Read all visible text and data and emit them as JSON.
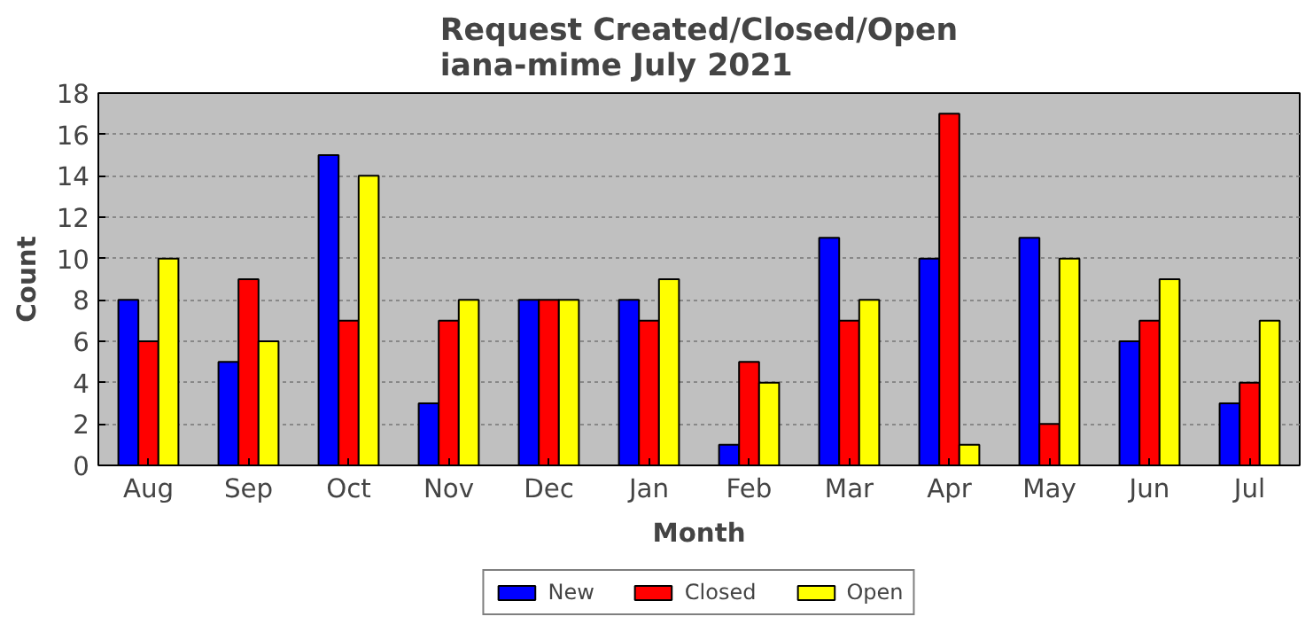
{
  "chart_data": {
    "type": "bar",
    "title": "Request Created/Closed/Open\niana-mime July 2021",
    "xlabel": "Month",
    "ylabel": "Count",
    "categories": [
      "Aug",
      "Sep",
      "Oct",
      "Nov",
      "Dec",
      "Jan",
      "Feb",
      "Mar",
      "Apr",
      "May",
      "Jun",
      "Jul"
    ],
    "series": [
      {
        "name": "New",
        "color": "#0000ff",
        "values": [
          8,
          5,
          15,
          3,
          8,
          8,
          1,
          11,
          10,
          11,
          6,
          3
        ]
      },
      {
        "name": "Closed",
        "color": "#ff0000",
        "values": [
          6,
          9,
          7,
          7,
          8,
          7,
          5,
          7,
          17,
          2,
          7,
          4
        ]
      },
      {
        "name": "Open",
        "color": "#ffff00",
        "values": [
          10,
          6,
          14,
          8,
          8,
          9,
          4,
          8,
          1,
          10,
          9,
          7
        ]
      }
    ],
    "ylim": [
      0,
      18
    ],
    "yticks": [
      0,
      2,
      4,
      6,
      8,
      10,
      12,
      14,
      16,
      18
    ],
    "grid": "y",
    "legend": "bottom"
  }
}
